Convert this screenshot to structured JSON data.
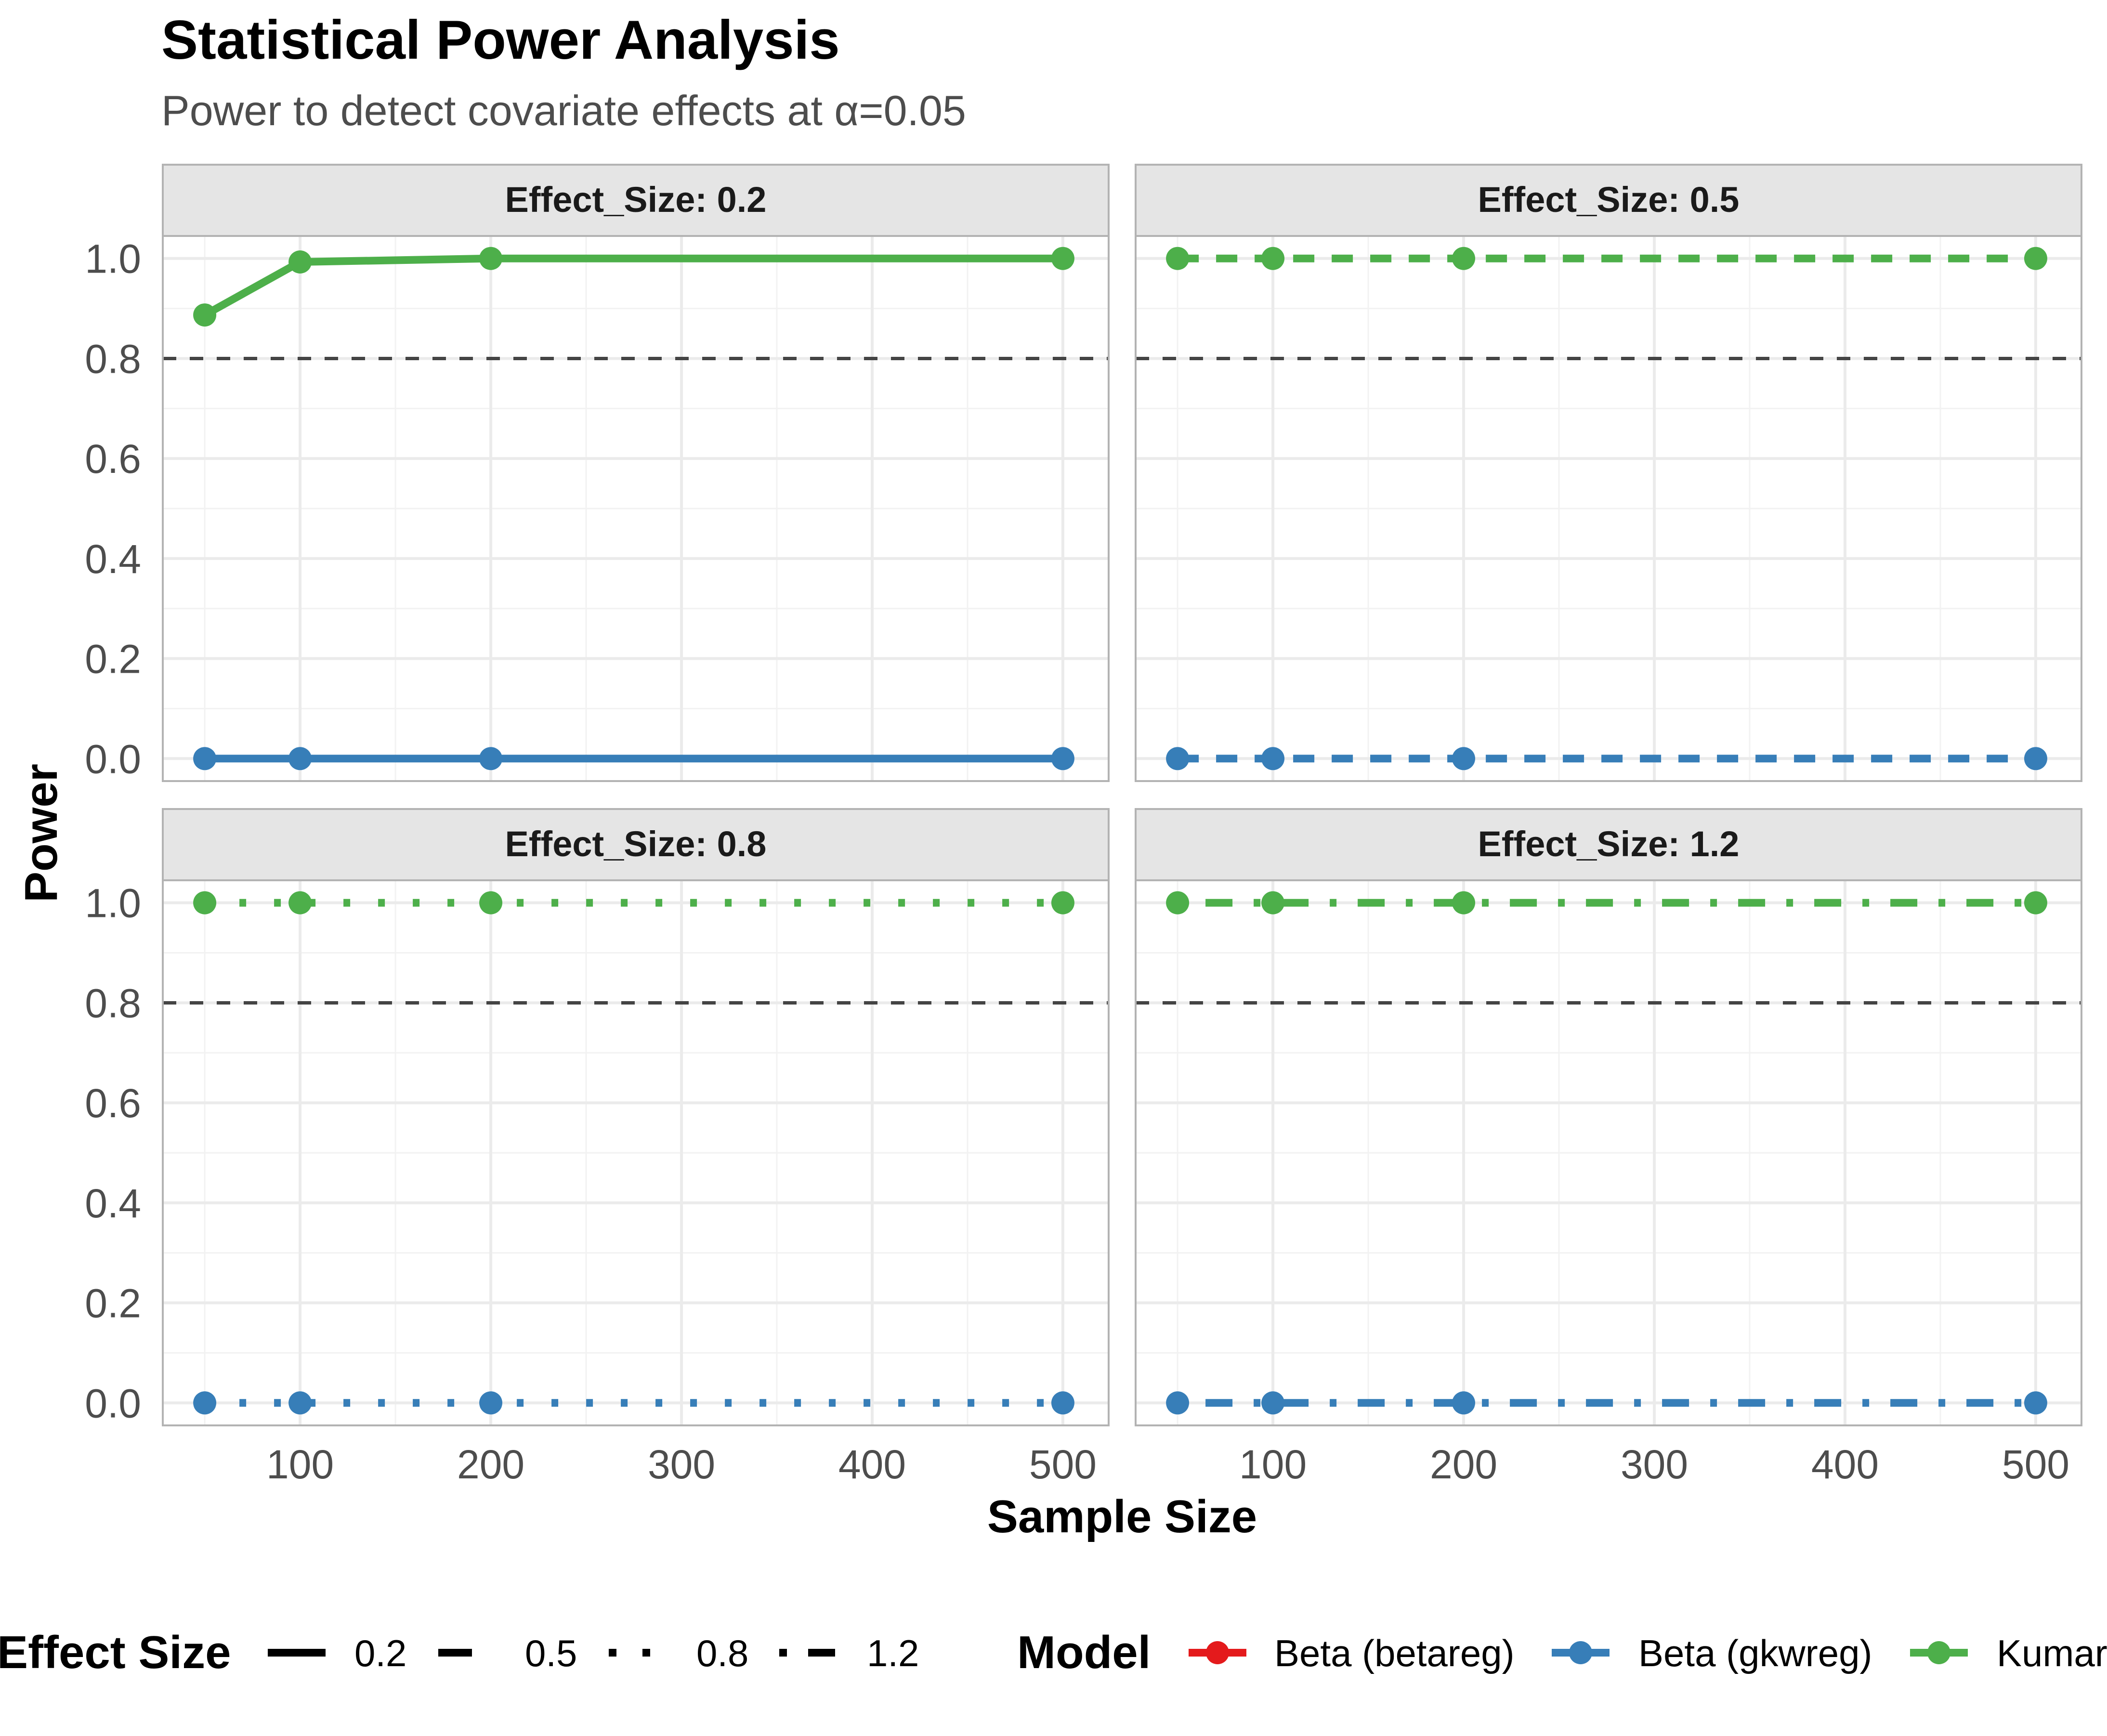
{
  "chart_data": {
    "type": "line",
    "title": "Statistical Power Analysis",
    "subtitle": "Power to detect covariate effects at α=0.05",
    "xlabel": "Sample Size",
    "ylabel": "Power",
    "xlim": [
      28,
      524
    ],
    "ylim": [
      -0.045,
      1.045
    ],
    "x_ticks": [
      100,
      200,
      300,
      400,
      500
    ],
    "x_tick_labels": [
      "100",
      "200",
      "300",
      "400",
      "500"
    ],
    "y_ticks": [
      0.0,
      0.2,
      0.4,
      0.6,
      0.8,
      1.0
    ],
    "y_tick_labels": [
      "0.0",
      "0.2",
      "0.4",
      "0.6",
      "0.8",
      "1.0"
    ],
    "grid": true,
    "reference_line": {
      "y": 0.8,
      "style": "dashed",
      "color": "#444444"
    },
    "x": [
      50,
      100,
      200,
      500
    ],
    "panels": [
      {
        "label": "Effect_Size: 0.2",
        "effect_size": "0.2",
        "linetype": "solid",
        "series": [
          {
            "model": "Beta (gkwreg)",
            "values": [
              0.0,
              0.0,
              0.0,
              0.0
            ]
          },
          {
            "model": "Kumaraswamy",
            "values": [
              0.887,
              0.993,
              1.0,
              1.0
            ]
          }
        ]
      },
      {
        "label": "Effect_Size: 0.5",
        "effect_size": "0.5",
        "linetype": "dashed",
        "series": [
          {
            "model": "Beta (gkwreg)",
            "values": [
              0.0,
              0.0,
              0.0,
              0.0
            ]
          },
          {
            "model": "Kumaraswamy",
            "values": [
              1.0,
              1.0,
              1.0,
              1.0
            ]
          }
        ]
      },
      {
        "label": "Effect_Size: 0.8",
        "effect_size": "0.8",
        "linetype": "dotted",
        "series": [
          {
            "model": "Beta (gkwreg)",
            "values": [
              0.0,
              0.0,
              0.0,
              0.0
            ]
          },
          {
            "model": "Kumaraswamy",
            "values": [
              1.0,
              1.0,
              1.0,
              1.0
            ]
          }
        ]
      },
      {
        "label": "Effect_Size: 1.2",
        "effect_size": "1.2",
        "linetype": "dotdash",
        "series": [
          {
            "model": "Beta (gkwreg)",
            "values": [
              0.0,
              0.0,
              0.0,
              0.0
            ]
          },
          {
            "model": "Kumaraswamy",
            "values": [
              1.0,
              1.0,
              1.0,
              1.0
            ]
          }
        ]
      }
    ],
    "legend": {
      "placement": "bottom",
      "effect_size": {
        "title": "Effect Size",
        "items": [
          {
            "label": "0.2",
            "linetype": "solid"
          },
          {
            "label": "0.5",
            "linetype": "dashed"
          },
          {
            "label": "0.8",
            "linetype": "dotted"
          },
          {
            "label": "1.2",
            "linetype": "dotdash"
          }
        ]
      },
      "model": {
        "title": "Model",
        "items": [
          {
            "label": "Beta (betareg)",
            "color": "#e41a1c"
          },
          {
            "label": "Beta (gkwreg)",
            "color": "#377eb8"
          },
          {
            "label": "Kumaraswamy",
            "color": "#4daf4a"
          }
        ]
      }
    },
    "colors": {
      "Beta (betareg)": "#e41a1c",
      "Beta (gkwreg)": "#377eb8",
      "Kumaraswamy": "#4daf4a"
    }
  }
}
